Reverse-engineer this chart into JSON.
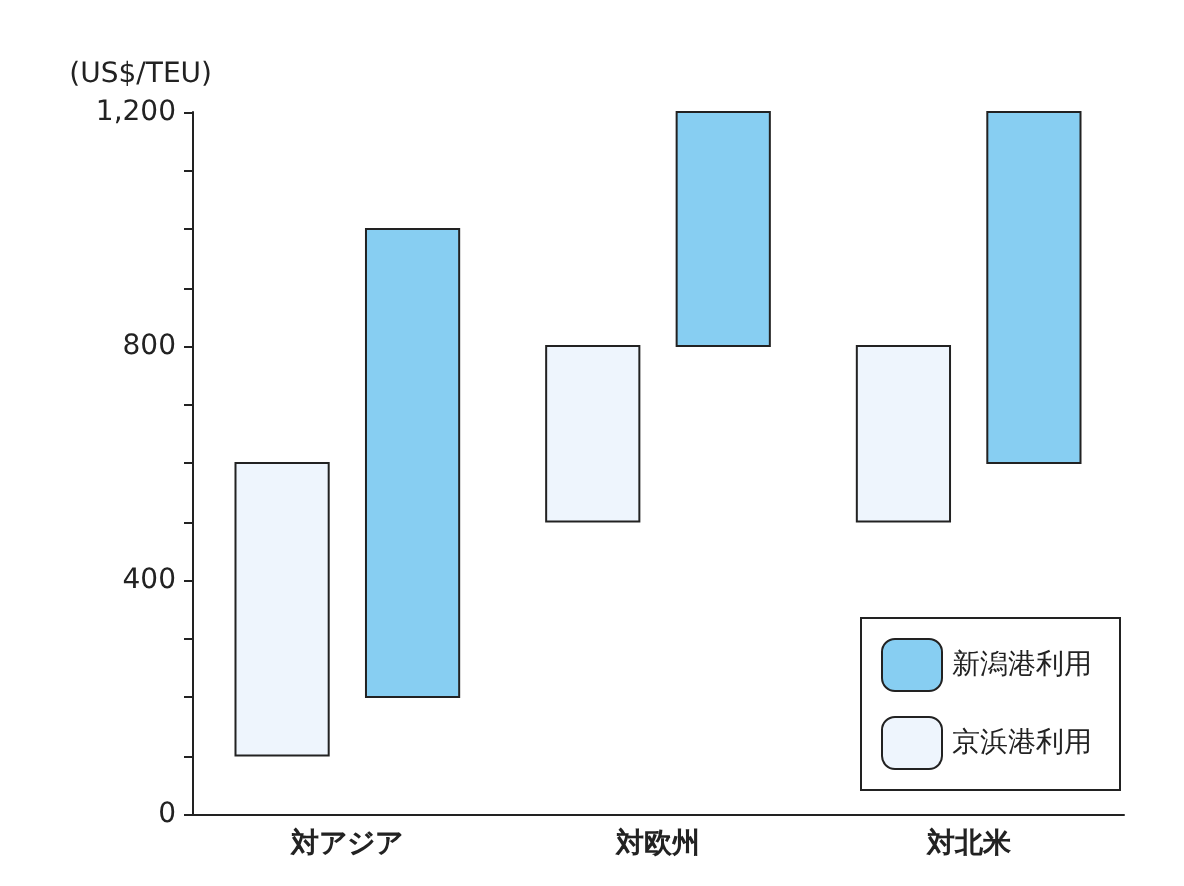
{
  "chart_data": {
    "type": "bar",
    "ylabel": "(US$/TEU)",
    "categories": [
      "対アジア",
      "対欧州",
      "対北米"
    ],
    "series": [
      {
        "name": "京浜港利用",
        "color": "#eef5fd",
        "values": [
          500,
          300,
          300
        ],
        "base": [
          100,
          500,
          500
        ]
      },
      {
        "name": "新潟港利用",
        "color": "#87cef2",
        "values": [
          800,
          400,
          600
        ],
        "base": [
          200,
          800,
          600
        ]
      }
    ],
    "ylim": [
      0,
      1200
    ],
    "yticks": [
      0,
      {
        "value": 100,
        "label": null
      },
      {
        "value": 200,
        "label": null
      },
      {
        "value": 300,
        "label": null
      },
      400,
      {
        "value": 500,
        "label": null
      },
      {
        "value": 600,
        "label": null
      },
      {
        "value": 700,
        "label": null
      },
      800,
      {
        "value": 900,
        "label": null
      },
      {
        "value": 1000,
        "label": null
      },
      {
        "value": 1100,
        "label": null
      },
      {
        "value": 1200,
        "label": "1,200"
      }
    ],
    "grid": false,
    "legend": "bottom right"
  }
}
